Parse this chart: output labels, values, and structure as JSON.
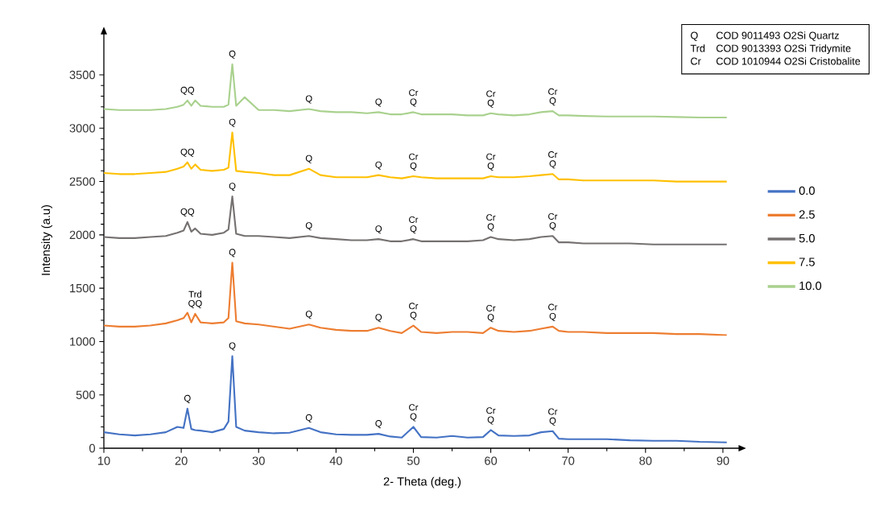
{
  "chart_data": {
    "type": "line",
    "xlabel": "2- Theta (deg.)",
    "ylabel": "Intensity (a.u)",
    "xlim": [
      10,
      92.3
    ],
    "ylim": [
      0,
      3900
    ],
    "xticks": [
      10,
      20,
      30,
      40,
      50,
      60,
      70,
      80,
      90
    ],
    "yticks": [
      0,
      500,
      1000,
      1500,
      2000,
      2500,
      3000,
      3500
    ],
    "legend": "right",
    "x": [
      10,
      12,
      14,
      16,
      18,
      19.5,
      20.3,
      20.8,
      21.3,
      21.8,
      22.5,
      24,
      25.5,
      26.1,
      26.6,
      27.1,
      28.2,
      30,
      32,
      34,
      36.5,
      38,
      40,
      42,
      44,
      45.5,
      47,
      48.5,
      50,
      51,
      53,
      55,
      57,
      59,
      60,
      61,
      63,
      65,
      66.5,
      68,
      68.8,
      70,
      72,
      75,
      78,
      81,
      84,
      87,
      90.5
    ],
    "series": [
      {
        "name": "0.0",
        "color": "#4472c4",
        "values": [
          150,
          130,
          120,
          130,
          150,
          200,
          190,
          371,
          180,
          170,
          165,
          150,
          180,
          250,
          864,
          200,
          165,
          150,
          140,
          145,
          190,
          150,
          130,
          125,
          125,
          135,
          110,
          100,
          200,
          105,
          100,
          115,
          100,
          105,
          170,
          120,
          115,
          120,
          150,
          160,
          90,
          85,
          85,
          85,
          75,
          70,
          70,
          60,
          55
        ]
      },
      {
        "name": "2.5",
        "color": "#ed7d31",
        "values": [
          1150,
          1140,
          1140,
          1150,
          1170,
          1200,
          1220,
          1270,
          1180,
          1260,
          1180,
          1170,
          1180,
          1220,
          1740,
          1190,
          1170,
          1160,
          1140,
          1120,
          1160,
          1130,
          1110,
          1100,
          1100,
          1130,
          1100,
          1080,
          1150,
          1090,
          1080,
          1090,
          1090,
          1080,
          1130,
          1100,
          1090,
          1100,
          1120,
          1140,
          1100,
          1090,
          1090,
          1080,
          1080,
          1080,
          1070,
          1070,
          1060
        ]
      },
      {
        "name": "5.0",
        "color": "#767171",
        "values": [
          1980,
          1970,
          1970,
          1980,
          1990,
          2020,
          2040,
          2120,
          2030,
          2060,
          2010,
          2000,
          2020,
          2050,
          2360,
          2010,
          1990,
          1990,
          1980,
          1970,
          1990,
          1970,
          1960,
          1950,
          1950,
          1960,
          1940,
          1940,
          1960,
          1940,
          1940,
          1940,
          1940,
          1950,
          1980,
          1960,
          1950,
          1960,
          1980,
          1990,
          1930,
          1930,
          1920,
          1920,
          1920,
          1910,
          1910,
          1910,
          1910
        ]
      },
      {
        "name": "7.5",
        "color": "#ffc000",
        "values": [
          2580,
          2570,
          2570,
          2580,
          2590,
          2620,
          2640,
          2680,
          2620,
          2660,
          2610,
          2600,
          2610,
          2630,
          2960,
          2600,
          2590,
          2580,
          2560,
          2560,
          2620,
          2560,
          2540,
          2540,
          2540,
          2560,
          2540,
          2530,
          2550,
          2540,
          2530,
          2530,
          2530,
          2530,
          2550,
          2540,
          2540,
          2550,
          2560,
          2570,
          2520,
          2520,
          2510,
          2510,
          2510,
          2510,
          2500,
          2500,
          2500
        ]
      },
      {
        "name": "10.0",
        "color": "#a9d18e",
        "values": [
          3180,
          3170,
          3170,
          3170,
          3180,
          3200,
          3220,
          3260,
          3210,
          3260,
          3210,
          3200,
          3200,
          3220,
          3600,
          3210,
          3290,
          3170,
          3170,
          3160,
          3180,
          3160,
          3150,
          3150,
          3140,
          3150,
          3130,
          3130,
          3150,
          3130,
          3130,
          3130,
          3120,
          3120,
          3140,
          3130,
          3120,
          3130,
          3150,
          3160,
          3120,
          3120,
          3115,
          3110,
          3110,
          3110,
          3105,
          3100,
          3100
        ]
      }
    ],
    "annotations": [
      "Q",
      "COD 9011493 O2Si Quartz",
      "Trd",
      "COD 9013393 O2Si Tridymite",
      "Cr",
      "COD 1010944 O2Si Cristobalite",
      {
        "text": "Q",
        "x": 20.8,
        "y": 371
      },
      {
        "text": "Q",
        "x": 26.6,
        "y": 864
      },
      {
        "text": "Q",
        "x": 36.5,
        "y": 190
      },
      {
        "text": "Q",
        "x": 45.5,
        "y": 135
      },
      {
        "text": "Cr",
        "x": 50,
        "y": 200
      },
      {
        "text": "Q",
        "x": 50,
        "y": 200
      },
      {
        "text": "Cr",
        "x": 60,
        "y": 170
      },
      {
        "text": "Q",
        "x": 60,
        "y": 170
      },
      {
        "text": "Cr",
        "x": 68,
        "y": 160
      },
      {
        "text": "Q",
        "x": 68,
        "y": 160
      },
      {
        "text": "Q",
        "x": 26.6,
        "y": 1740
      },
      {
        "text": "Trd",
        "x": 21.8,
        "y": 1260
      },
      {
        "text": "QQ",
        "x": 21.8,
        "y": 1260
      },
      {
        "text": "Q",
        "x": 36.5,
        "y": 1160
      },
      {
        "text": "Q",
        "x": 45.5,
        "y": 1130
      },
      {
        "text": "Cr",
        "x": 50,
        "y": 1150
      },
      {
        "text": "Q",
        "x": 50,
        "y": 1150
      },
      {
        "text": "Cr",
        "x": 60,
        "y": 1130
      },
      {
        "text": "Q",
        "x": 60,
        "y": 1130
      },
      {
        "text": "Cr",
        "x": 68,
        "y": 1140
      },
      {
        "text": "Q",
        "x": 68,
        "y": 1140
      },
      {
        "text": "Q",
        "x": 26.6,
        "y": 2360
      },
      {
        "text": "QQ",
        "x": 20.8,
        "y": 2120
      },
      {
        "text": "Q",
        "x": 36.5,
        "y": 1990
      },
      {
        "text": "Q",
        "x": 45.5,
        "y": 1960
      },
      {
        "text": "Cr",
        "x": 50,
        "y": 1960
      },
      {
        "text": "Q",
        "x": 50,
        "y": 1960
      },
      {
        "text": "Cr",
        "x": 60,
        "y": 1980
      },
      {
        "text": "Q",
        "x": 60,
        "y": 1980
      },
      {
        "text": "Cr",
        "x": 68,
        "y": 1990
      },
      {
        "text": "Q",
        "x": 68,
        "y": 1990
      },
      {
        "text": "Q",
        "x": 26.6,
        "y": 2960
      },
      {
        "text": "QQ",
        "x": 20.8,
        "y": 2680
      },
      {
        "text": "Q",
        "x": 36.5,
        "y": 2620
      },
      {
        "text": "Q",
        "x": 45.5,
        "y": 2560
      },
      {
        "text": "Cr",
        "x": 50,
        "y": 2550
      },
      {
        "text": "Q",
        "x": 50,
        "y": 2550
      },
      {
        "text": "Cr",
        "x": 60,
        "y": 2550
      },
      {
        "text": "Q",
        "x": 60,
        "y": 2550
      },
      {
        "text": "Cr",
        "x": 68,
        "y": 2570
      },
      {
        "text": "Q",
        "x": 68,
        "y": 2570
      },
      {
        "text": "Q",
        "x": 26.6,
        "y": 3600
      },
      {
        "text": "QQ",
        "x": 20.8,
        "y": 3260
      },
      {
        "text": "Q",
        "x": 36.5,
        "y": 3180
      },
      {
        "text": "Q",
        "x": 45.5,
        "y": 3150
      },
      {
        "text": "Cr",
        "x": 50,
        "y": 3150
      },
      {
        "text": "Q",
        "x": 50,
        "y": 3150
      },
      {
        "text": "Cr",
        "x": 60,
        "y": 3140
      },
      {
        "text": "Q",
        "x": 60,
        "y": 3140
      },
      {
        "text": "Cr",
        "x": 68,
        "y": 3160
      },
      {
        "text": "Q",
        "x": 68,
        "y": 3160
      }
    ]
  }
}
